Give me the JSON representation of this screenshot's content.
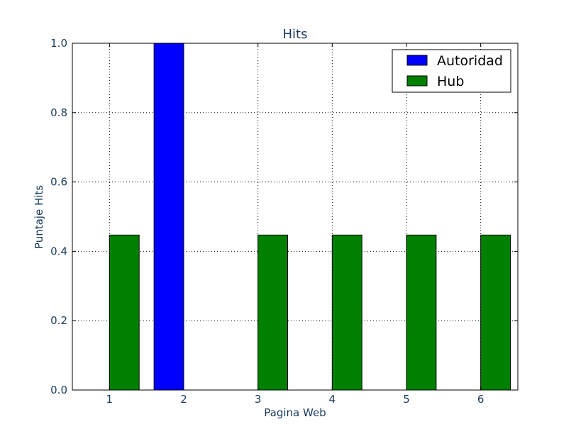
{
  "chart_data": {
    "type": "bar",
    "title": "Hits",
    "xlabel": "Pagina Web",
    "ylabel": "Puntaje Hits",
    "categories": [
      "1",
      "2",
      "3",
      "4",
      "5",
      "6"
    ],
    "x_ticks": [
      "1",
      "2",
      "3",
      "4",
      "5",
      "6"
    ],
    "y_ticks": [
      "0.0",
      "0.2",
      "0.4",
      "0.6",
      "0.8",
      "1.0"
    ],
    "ylim": [
      0,
      1.0
    ],
    "grid": true,
    "legend_position": "top-right",
    "series": [
      {
        "name": "Autoridad",
        "color": "#0000ff",
        "values": [
          0.0,
          1.0,
          0.0,
          0.0,
          0.0,
          0.0
        ]
      },
      {
        "name": "Hub",
        "color": "#008000",
        "values": [
          0.447,
          0.0,
          0.447,
          0.447,
          0.447,
          0.447
        ]
      }
    ]
  }
}
